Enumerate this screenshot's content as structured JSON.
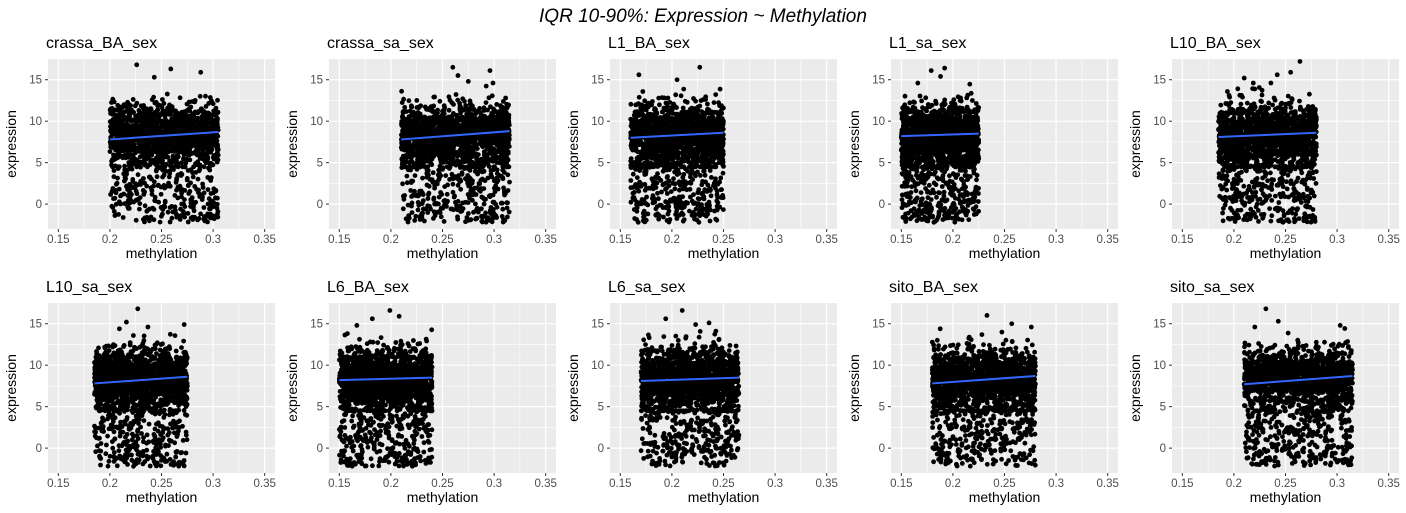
{
  "figure_title": "IQR 10-90%: Expression ~ Methylation",
  "colors": {
    "panel_bg": "#EBEBEB",
    "grid": "#FFFFFF",
    "points": "#000000",
    "fit_line": "#3366FF",
    "tick_text": "#4D4D4D"
  },
  "chart_data": [
    {
      "type": "scatter",
      "title": "crassa_BA_sex",
      "xlabel": "methylation",
      "ylabel": "expression",
      "xlim": [
        0.14,
        0.36
      ],
      "ylim": [
        -3.0,
        17.5
      ],
      "x_ticks": [
        0.15,
        0.2,
        0.25,
        0.3,
        0.35
      ],
      "y_ticks": [
        0,
        5,
        10,
        15
      ],
      "x_range": [
        0.2,
        0.305
      ],
      "fit": {
        "x": [
          0.2,
          0.305
        ],
        "y": [
          7.8,
          8.7
        ]
      },
      "outliers": [
        [
          0.226,
          16.8
        ],
        [
          0.243,
          15.3
        ],
        [
          0.259,
          16.3
        ],
        [
          0.288,
          15.9
        ]
      ],
      "grid": true
    },
    {
      "type": "scatter",
      "title": "crassa_sa_sex",
      "xlabel": "methylation",
      "ylabel": "expression",
      "xlim": [
        0.14,
        0.36
      ],
      "ylim": [
        -3.0,
        17.5
      ],
      "x_ticks": [
        0.15,
        0.2,
        0.25,
        0.3,
        0.35
      ],
      "y_ticks": [
        0,
        5,
        10,
        15
      ],
      "x_range": [
        0.21,
        0.315
      ],
      "fit": {
        "x": [
          0.21,
          0.315
        ],
        "y": [
          7.8,
          8.8
        ]
      },
      "outliers": [
        [
          0.26,
          16.5
        ],
        [
          0.265,
          15.5
        ],
        [
          0.296,
          16.1
        ],
        [
          0.275,
          14.8
        ]
      ],
      "grid": true
    },
    {
      "type": "scatter",
      "title": "L1_BA_sex",
      "xlabel": "methylation",
      "ylabel": "expression",
      "xlim": [
        0.14,
        0.36
      ],
      "ylim": [
        -3.0,
        17.5
      ],
      "x_ticks": [
        0.15,
        0.2,
        0.25,
        0.3,
        0.35
      ],
      "y_ticks": [
        0,
        5,
        10,
        15
      ],
      "x_range": [
        0.16,
        0.25
      ],
      "fit": {
        "x": [
          0.16,
          0.25
        ],
        "y": [
          8.0,
          8.6
        ]
      },
      "outliers": [
        [
          0.168,
          15.6
        ],
        [
          0.227,
          16.5
        ],
        [
          0.205,
          15.0
        ]
      ],
      "grid": true
    },
    {
      "type": "scatter",
      "title": "L1_sa_sex",
      "xlabel": "methylation",
      "ylabel": "expression",
      "xlim": [
        0.14,
        0.36
      ],
      "ylim": [
        -3.0,
        17.5
      ],
      "x_ticks": [
        0.15,
        0.2,
        0.25,
        0.3,
        0.35
      ],
      "y_ticks": [
        0,
        5,
        10,
        15
      ],
      "x_range": [
        0.15,
        0.225
      ],
      "fit": {
        "x": [
          0.15,
          0.225
        ],
        "y": [
          8.2,
          8.5
        ]
      },
      "outliers": [
        [
          0.179,
          16.1
        ],
        [
          0.192,
          16.4
        ],
        [
          0.188,
          15.4
        ],
        [
          0.166,
          14.6
        ]
      ],
      "grid": true
    },
    {
      "type": "scatter",
      "title": "L10_BA_sex",
      "xlabel": "methylation",
      "ylabel": "expression",
      "xlim": [
        0.14,
        0.36
      ],
      "ylim": [
        -3.0,
        17.5
      ],
      "x_ticks": [
        0.15,
        0.2,
        0.25,
        0.3,
        0.35
      ],
      "y_ticks": [
        0,
        5,
        10,
        15
      ],
      "x_range": [
        0.185,
        0.28
      ],
      "fit": {
        "x": [
          0.185,
          0.28
        ],
        "y": [
          8.1,
          8.6
        ]
      },
      "outliers": [
        [
          0.264,
          17.2
        ],
        [
          0.255,
          15.9
        ],
        [
          0.242,
          15.6
        ],
        [
          0.21,
          15.2
        ]
      ],
      "grid": true
    },
    {
      "type": "scatter",
      "title": "L10_sa_sex",
      "xlabel": "methylation",
      "ylabel": "expression",
      "xlim": [
        0.14,
        0.36
      ],
      "ylim": [
        -3.0,
        17.5
      ],
      "x_ticks": [
        0.15,
        0.2,
        0.25,
        0.3,
        0.35
      ],
      "y_ticks": [
        0,
        5,
        10,
        15
      ],
      "x_range": [
        0.185,
        0.275
      ],
      "fit": {
        "x": [
          0.185,
          0.275
        ],
        "y": [
          7.8,
          8.6
        ]
      },
      "outliers": [
        [
          0.227,
          16.8
        ],
        [
          0.216,
          15.2
        ],
        [
          0.272,
          14.9
        ]
      ],
      "grid": true
    },
    {
      "type": "scatter",
      "title": "L6_BA_sex",
      "xlabel": "methylation",
      "ylabel": "expression",
      "xlim": [
        0.14,
        0.36
      ],
      "ylim": [
        -3.0,
        17.5
      ],
      "x_ticks": [
        0.15,
        0.2,
        0.25,
        0.3,
        0.35
      ],
      "y_ticks": [
        0,
        5,
        10,
        15
      ],
      "x_range": [
        0.15,
        0.24
      ],
      "fit": {
        "x": [
          0.15,
          0.24
        ],
        "y": [
          8.2,
          8.5
        ]
      },
      "outliers": [
        [
          0.199,
          16.6
        ],
        [
          0.182,
          15.6
        ],
        [
          0.208,
          15.9
        ],
        [
          0.167,
          14.8
        ]
      ],
      "grid": true
    },
    {
      "type": "scatter",
      "title": "L6_sa_sex",
      "xlabel": "methylation",
      "ylabel": "expression",
      "xlim": [
        0.14,
        0.36
      ],
      "ylim": [
        -3.0,
        17.5
      ],
      "x_ticks": [
        0.15,
        0.2,
        0.25,
        0.3,
        0.35
      ],
      "y_ticks": [
        0,
        5,
        10,
        15
      ],
      "x_range": [
        0.17,
        0.265
      ],
      "fit": {
        "x": [
          0.17,
          0.265
        ],
        "y": [
          8.1,
          8.5
        ]
      },
      "outliers": [
        [
          0.21,
          16.6
        ],
        [
          0.194,
          15.6
        ],
        [
          0.236,
          15.1
        ],
        [
          0.223,
          14.9
        ]
      ],
      "grid": true
    },
    {
      "type": "scatter",
      "title": "sito_BA_sex",
      "xlabel": "methylation",
      "ylabel": "expression",
      "xlim": [
        0.14,
        0.36
      ],
      "ylim": [
        -3.0,
        17.5
      ],
      "x_ticks": [
        0.15,
        0.2,
        0.25,
        0.3,
        0.35
      ],
      "y_ticks": [
        0,
        5,
        10,
        15
      ],
      "x_range": [
        0.18,
        0.28
      ],
      "fit": {
        "x": [
          0.18,
          0.28
        ],
        "y": [
          7.8,
          8.7
        ]
      },
      "outliers": [
        [
          0.233,
          16.0
        ],
        [
          0.257,
          15.0
        ],
        [
          0.276,
          14.6
        ]
      ],
      "grid": true
    },
    {
      "type": "scatter",
      "title": "sito_sa_sex",
      "xlabel": "methylation",
      "ylabel": "expression",
      "xlim": [
        0.14,
        0.36
      ],
      "ylim": [
        -3.0,
        17.5
      ],
      "x_ticks": [
        0.15,
        0.2,
        0.25,
        0.3,
        0.35
      ],
      "y_ticks": [
        0,
        5,
        10,
        15
      ],
      "x_range": [
        0.21,
        0.315
      ],
      "fit": {
        "x": [
          0.21,
          0.315
        ],
        "y": [
          7.7,
          8.7
        ]
      },
      "outliers": [
        [
          0.231,
          16.8
        ],
        [
          0.243,
          15.3
        ],
        [
          0.303,
          14.8
        ]
      ],
      "grid": true
    }
  ]
}
